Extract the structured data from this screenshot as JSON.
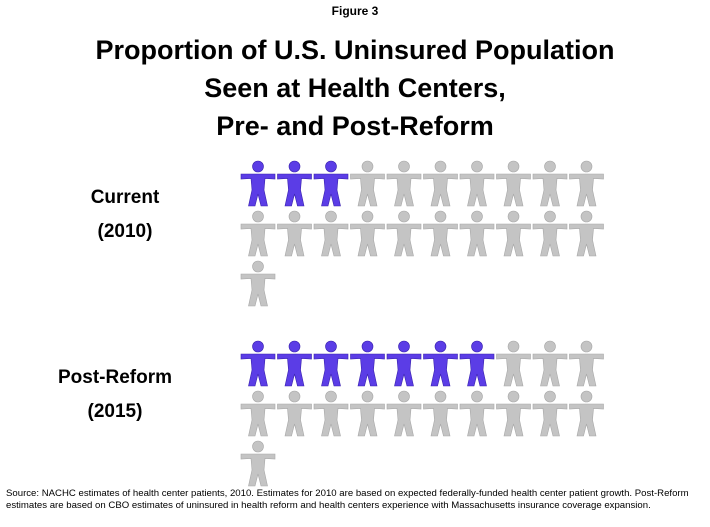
{
  "chart_data": {
    "type": "pictogram",
    "figure": "Figure 3",
    "title": [
      "Proportion of  U.S. Uninsured Population",
      "Seen at Health Centers,",
      "Pre- and Post-Reform"
    ],
    "categories": [
      [
        "Current",
        "(2010)"
      ],
      [
        "Post-Reform",
        "(2015)"
      ]
    ],
    "values": [
      3,
      7
    ],
    "totals": [
      21,
      21
    ],
    "color": "#5b3de6",
    "base_color": "#c4c4c4",
    "source": "Source: NACHC estimates of health center patients, 2010. Estimates for 2010 are based on expected federally-funded health center patient  growth. Post-Reform estimates are based on CBO estimates of uninsured in health reform and health centers experience with Massachusetts insurance coverage expansion."
  }
}
